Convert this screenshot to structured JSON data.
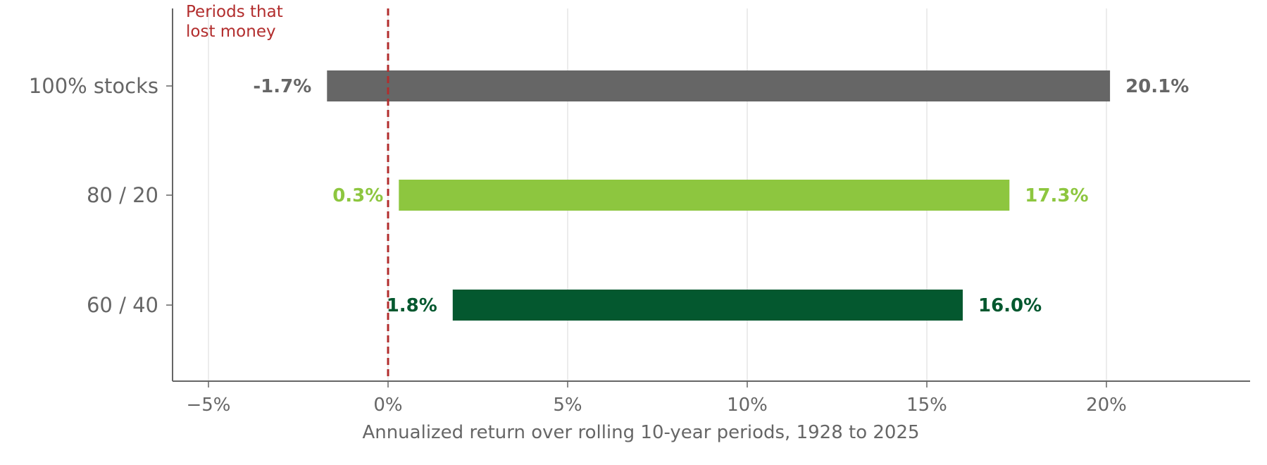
{
  "chart_data": {
    "type": "bar",
    "title": "",
    "xlabel": "Annualized return over rolling 10-year periods, 1928 to 2025",
    "ylabel": "",
    "xlim": [
      -6,
      24
    ],
    "xticks": [
      -5,
      0,
      5,
      10,
      15,
      20
    ],
    "xtick_labels": [
      "−5%",
      "0%",
      "5%",
      "10%",
      "15%",
      "20%"
    ],
    "grid": true,
    "categories": [
      "100% stocks",
      "80 / 20",
      "60 / 40"
    ],
    "series": [
      {
        "values": [
          {
            "category": "100% stocks",
            "low": -1.7,
            "high": 20.1,
            "low_label": "-1.7%",
            "high_label": "20.1%",
            "color": "#666666"
          },
          {
            "category": "80 / 20",
            "low": 0.3,
            "high": 17.3,
            "low_label": "0.3%",
            "high_label": "17.3%",
            "color": "#8dc63f"
          },
          {
            "category": "60 / 40",
            "low": 1.8,
            "high": 16.0,
            "low_label": "1.8%",
            "high_label": "16.0%",
            "color": "#04582f"
          }
        ]
      }
    ],
    "reference_line": {
      "x": 0,
      "label_lines": [
        "Periods that",
        "lost money"
      ],
      "color": "#b22d2d",
      "style": "dashed"
    }
  },
  "colors": {
    "axis": "#666666",
    "grid": "#e5e5e5",
    "title_partial": "#04582f"
  }
}
